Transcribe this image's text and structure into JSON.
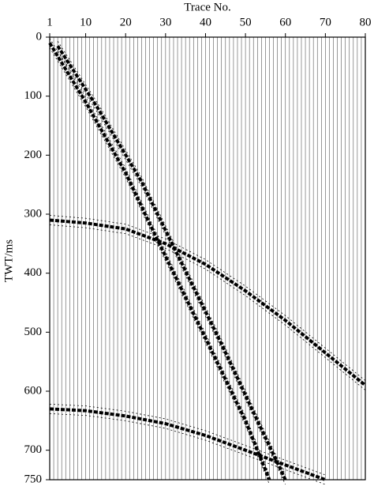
{
  "chart_data": {
    "type": "wiggle",
    "xlabel": "Trace No.",
    "ylabel": "TWT/ms",
    "xlim": [
      1,
      80
    ],
    "ylim": [
      0,
      750
    ],
    "xticks": [
      1,
      10,
      20,
      30,
      40,
      50,
      60,
      70,
      80
    ],
    "yticks": [
      0,
      100,
      200,
      300,
      400,
      500,
      600,
      700,
      750
    ],
    "y_inverted": true,
    "series": [
      {
        "color": "#000000",
        "x": [
          1,
          10,
          20,
          27,
          40,
          50,
          56
        ],
        "values": [
          10,
          110,
          230,
          330,
          510,
          650,
          750
        ]
      },
      {
        "color": "#000000",
        "x": [
          3,
          13,
          24,
          32,
          44,
          53,
          60
        ],
        "values": [
          15,
          120,
          245,
          355,
          520,
          650,
          750
        ]
      },
      {
        "color": "#000000",
        "x": [
          1,
          10,
          20,
          30,
          40,
          50,
          60,
          70,
          80
        ],
        "values": [
          310,
          315,
          325,
          350,
          385,
          430,
          480,
          535,
          590
        ]
      },
      {
        "color": "#000000",
        "x": [
          1,
          10,
          20,
          30,
          40,
          50,
          60,
          70
        ],
        "values": [
          630,
          633,
          642,
          655,
          675,
          700,
          725,
          750
        ]
      }
    ]
  }
}
